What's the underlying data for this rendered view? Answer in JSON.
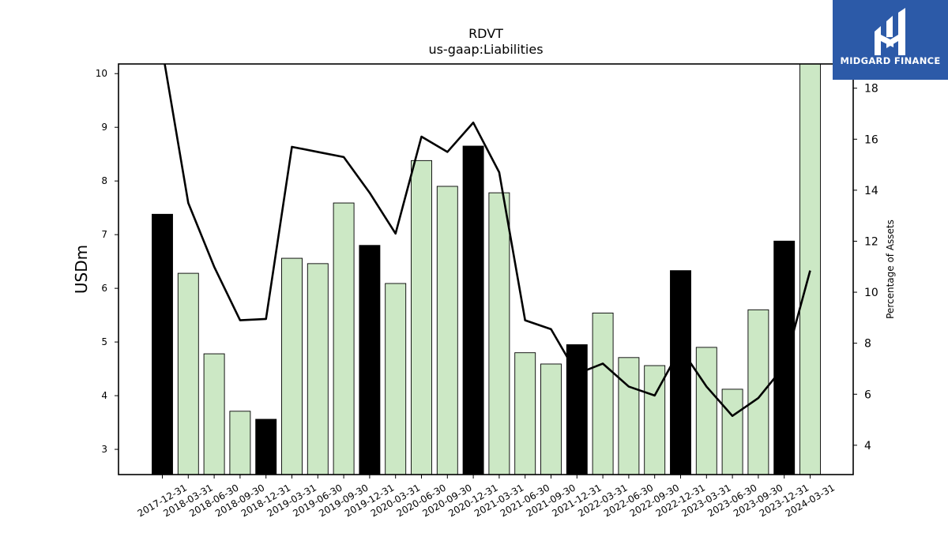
{
  "chart_data": {
    "type": "bar",
    "title": "RDVT",
    "subtitle": "us-gaap:Liabilities",
    "ylabel": "USDm",
    "y2label": "Percentage of Assets",
    "ylim": [
      2.53,
      10.18
    ],
    "y2lim": [
      2.85,
      18.95
    ],
    "yticks": [
      3,
      4,
      5,
      6,
      7,
      8,
      9,
      10
    ],
    "y2ticks": [
      4,
      6,
      8,
      10,
      12,
      14,
      16,
      18
    ],
    "categories": [
      "2017-12-31",
      "2018-03-31",
      "2018-06-30",
      "2018-09-30",
      "2018-12-31",
      "2019-03-31",
      "2019-06-30",
      "2019-09-30",
      "2019-12-31",
      "2020-03-31",
      "2020-06-30",
      "2020-09-30",
      "2020-12-31",
      "2021-03-31",
      "2021-06-30",
      "2021-09-30",
      "2021-12-31",
      "2022-03-31",
      "2022-06-30",
      "2022-09-30",
      "2022-12-31",
      "2023-03-31",
      "2023-06-30",
      "2023-09-30",
      "2023-12-31",
      "2024-03-31"
    ],
    "series": [
      {
        "type": "bar",
        "axis": "left",
        "values": [
          7.38,
          6.28,
          4.78,
          3.71,
          3.56,
          6.56,
          6.46,
          7.59,
          6.8,
          6.09,
          8.38,
          7.9,
          8.65,
          7.78,
          4.8,
          4.59,
          4.95,
          5.54,
          4.71,
          4.56,
          6.33,
          4.9,
          4.12,
          5.6,
          6.88,
          10.18
        ]
      },
      {
        "type": "line",
        "axis": "right",
        "values": [
          19.5,
          13.5,
          11.0,
          8.9,
          8.95,
          15.7,
          15.5,
          15.3,
          13.9,
          12.3,
          16.1,
          15.5,
          16.65,
          14.7,
          8.9,
          8.55,
          6.8,
          7.2,
          6.3,
          5.95,
          7.8,
          6.3,
          5.15,
          5.85,
          7.1,
          10.85
        ]
      }
    ],
    "colors": {
      "bar_highlight": "#000000",
      "bar_normal": "#cce8c5",
      "bar_edge": "#000000",
      "line": "#000000"
    },
    "grid": false
  },
  "brand": {
    "name": "MIDGARD FINANCE",
    "background": "#2c5aa8",
    "icon": "midgard-logo-icon"
  }
}
